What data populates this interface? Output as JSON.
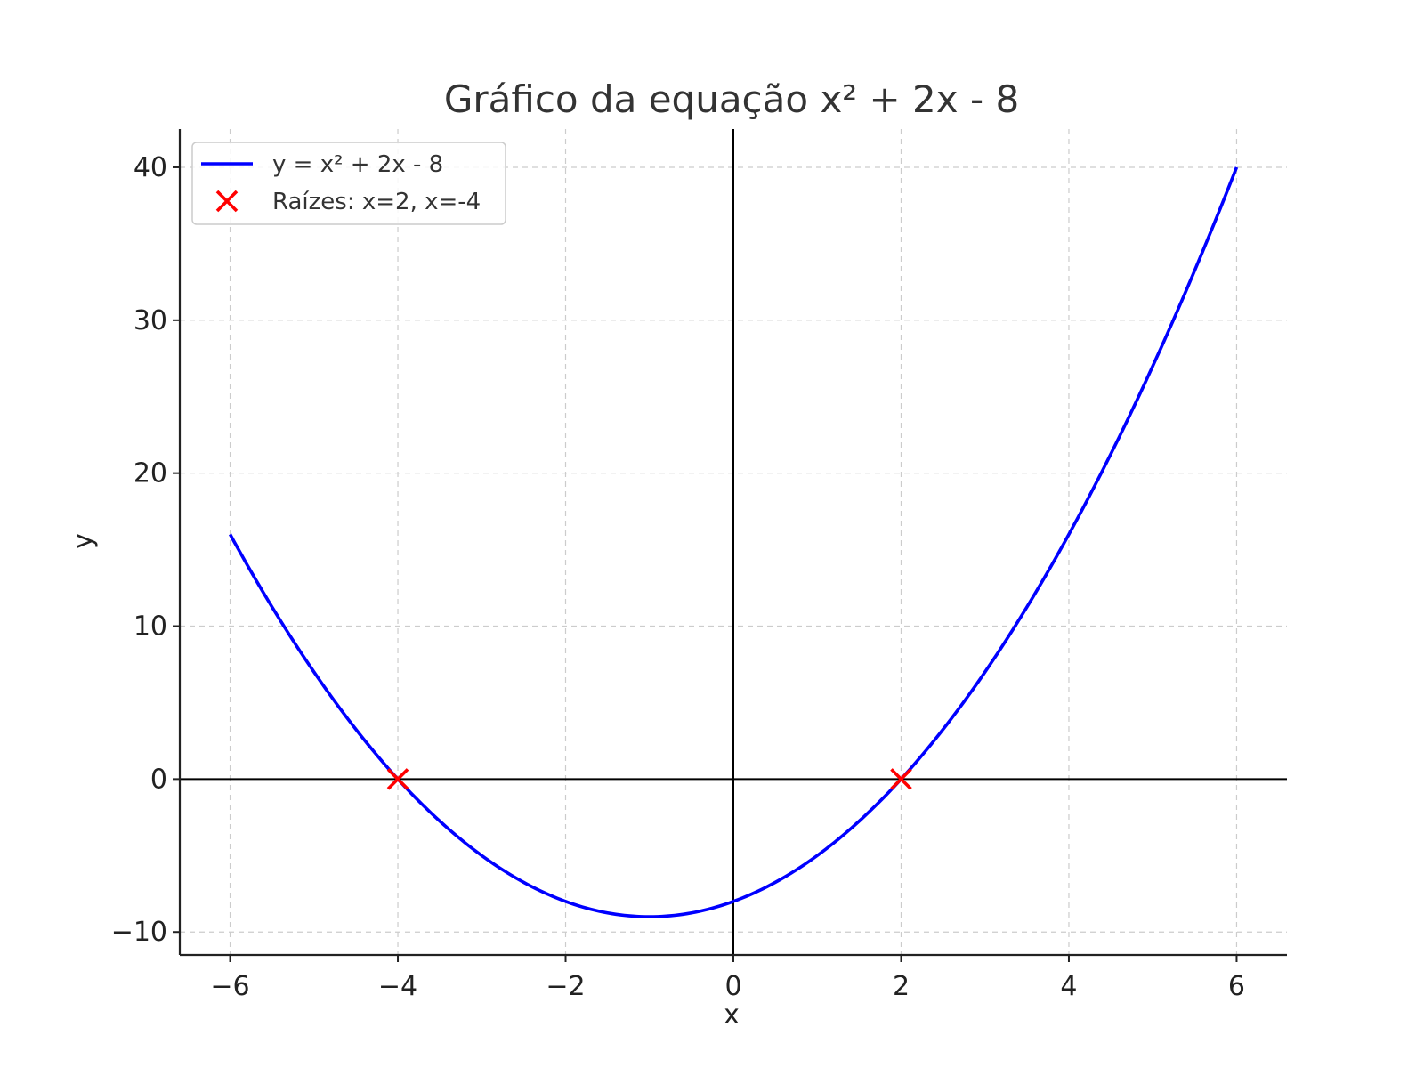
{
  "chart_data": {
    "type": "line",
    "title": "Gráfico da equação x² + 2x - 8",
    "xlabel": "x",
    "ylabel": "y",
    "xlim": [
      -6.6,
      6.6
    ],
    "ylim": [
      -11.5,
      42.5
    ],
    "grid": true,
    "legend_position": "top-left",
    "x_ticks": [
      -6,
      -4,
      -2,
      0,
      2,
      4,
      6
    ],
    "x_tick_labels": [
      "−6",
      "−4",
      "−2",
      "0",
      "2",
      "4",
      "6"
    ],
    "y_ticks": [
      -10,
      0,
      10,
      20,
      30,
      40
    ],
    "y_tick_labels": [
      "−10",
      "0",
      "10",
      "20",
      "30",
      "40"
    ],
    "series": [
      {
        "name": "y = x² + 2x - 8",
        "kind": "line",
        "color": "#0000ff",
        "x": [
          -6,
          -5.5,
          -5,
          -4.5,
          -4,
          -3.5,
          -3,
          -2.5,
          -2,
          -1.5,
          -1,
          -0.5,
          0,
          0.5,
          1,
          1.5,
          2,
          2.5,
          3,
          3.5,
          4,
          4.5,
          5,
          5.5,
          6
        ],
        "y": [
          16,
          11.25,
          7,
          3.25,
          0,
          -2.75,
          -5,
          -6.75,
          -8,
          -8.75,
          -9,
          -8.75,
          -8,
          -6.75,
          -5,
          -2.75,
          0,
          3.25,
          7,
          11.25,
          16,
          21.25,
          27,
          33.25,
          40
        ]
      },
      {
        "name": "Raízes: x=2, x=-4",
        "kind": "scatter",
        "marker": "x",
        "color": "#ff0000",
        "x": [
          2,
          -4
        ],
        "y": [
          0,
          0
        ]
      }
    ]
  }
}
